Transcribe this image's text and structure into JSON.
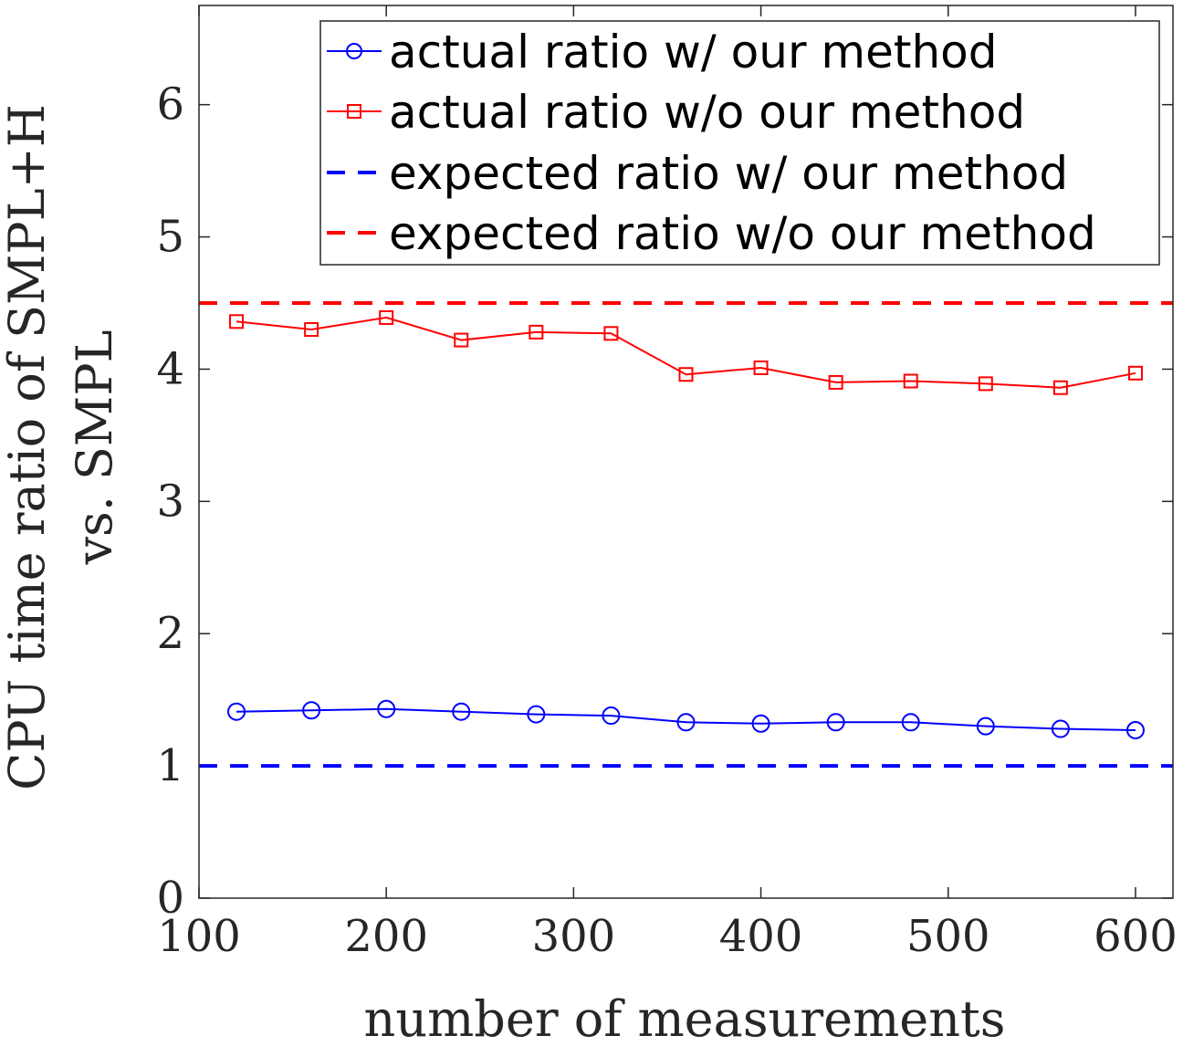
{
  "chart_data": {
    "type": "line",
    "xlabel": "number of measurements",
    "ylabel": [
      "CPU time ratio of SMPL+H",
      "vs. SMPL"
    ],
    "xlim": [
      100,
      620
    ],
    "ylim": [
      0,
      6.75
    ],
    "xticks": [
      100,
      200,
      300,
      400,
      500,
      600
    ],
    "yticks": [
      0,
      1,
      2,
      3,
      4,
      5,
      6
    ],
    "x": [
      120,
      160,
      200,
      240,
      280,
      320,
      360,
      400,
      440,
      480,
      520,
      560,
      600
    ],
    "legend_position": "top-right",
    "series": [
      {
        "name": "actual ratio w/ our method",
        "color": "#0000ff",
        "style": "solid",
        "marker": "circle",
        "values": [
          1.41,
          1.42,
          1.43,
          1.41,
          1.39,
          1.38,
          1.33,
          1.32,
          1.33,
          1.33,
          1.3,
          1.28,
          1.27
        ]
      },
      {
        "name": "actual ratio w/o our method",
        "color": "#ff0000",
        "style": "solid",
        "marker": "square",
        "values": [
          4.36,
          4.3,
          4.39,
          4.22,
          4.28,
          4.27,
          3.96,
          4.01,
          3.9,
          3.91,
          3.89,
          3.86,
          3.97
        ]
      },
      {
        "name": "expected ratio w/ our method",
        "color": "#0000ff",
        "style": "dashed",
        "marker": "none",
        "constant": 1
      },
      {
        "name": "expected ratio w/o our method",
        "color": "#ff0000",
        "style": "dashed",
        "marker": "none",
        "constant": 4.5
      }
    ]
  }
}
